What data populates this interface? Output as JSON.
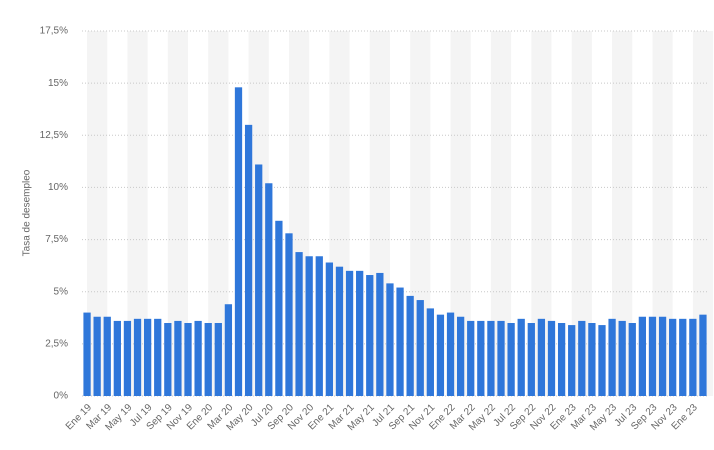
{
  "chart_data": {
    "type": "bar",
    "y_label": "Tasa de desempleo",
    "categories": [
      "Ene 19",
      null,
      "Mar 19",
      null,
      "May 19",
      null,
      "Jul 19",
      null,
      "Sep 19",
      null,
      "Nov 19",
      null,
      "Ene 20",
      null,
      "Mar 20",
      null,
      "May 20",
      null,
      "Jul 20",
      null,
      "Sep 20",
      null,
      "Nov 20",
      null,
      "Ene 21",
      null,
      "Mar 21",
      null,
      "May 21",
      null,
      "Jul 21",
      null,
      "Sep 21",
      null,
      "Nov 21",
      null,
      "Ene 22",
      null,
      "Mar 22",
      null,
      "May 22",
      null,
      "Jul 22",
      null,
      "Sep 22",
      null,
      "Nov 22",
      null,
      "Ene 23",
      null,
      "Mar 23",
      null,
      "May 23",
      null,
      "Jul 23",
      null,
      "Sep 23",
      null,
      "Nov 23",
      null,
      "Ene 23",
      null
    ],
    "values": [
      4.0,
      3.8,
      3.8,
      3.6,
      3.6,
      3.7,
      3.7,
      3.7,
      3.5,
      3.6,
      3.5,
      3.6,
      3.5,
      3.5,
      4.4,
      14.8,
      13.0,
      11.1,
      10.2,
      8.4,
      7.8,
      6.9,
      6.7,
      6.7,
      6.4,
      6.2,
      6.0,
      6.0,
      5.8,
      5.9,
      5.4,
      5.2,
      4.8,
      4.6,
      4.2,
      3.9,
      4.0,
      3.8,
      3.6,
      3.6,
      3.6,
      3.6,
      3.5,
      3.7,
      3.5,
      3.7,
      3.6,
      3.5,
      3.4,
      3.6,
      3.5,
      3.4,
      3.7,
      3.6,
      3.5,
      3.8,
      3.8,
      3.8,
      3.7,
      3.7,
      3.7,
      3.9
    ],
    "color": "#2f77da",
    "ylim": [
      0,
      17.5
    ],
    "yticks": [
      {
        "value": 0,
        "label": "0%"
      },
      {
        "value": 2.5,
        "label": "2,5%"
      },
      {
        "value": 5,
        "label": "5%"
      },
      {
        "value": 7.5,
        "label": "7,5%"
      },
      {
        "value": 10,
        "label": "10%"
      },
      {
        "value": 12.5,
        "label": "12,5%"
      },
      {
        "value": 15,
        "label": "15%"
      },
      {
        "value": 17.5,
        "label": "17,5%"
      }
    ],
    "grid": true
  }
}
